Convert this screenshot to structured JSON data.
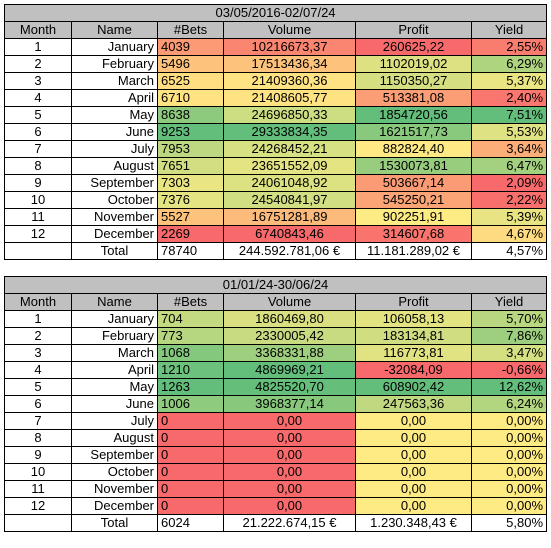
{
  "tables": [
    {
      "title": "03/05/2016-02/07/24",
      "header": [
        "Month",
        "Name",
        "#Bets",
        "Volume",
        "Profit",
        "Yield"
      ],
      "rows": [
        [
          "1",
          "January",
          "4039",
          "10216673,37",
          "260625,22",
          "2,55%"
        ],
        [
          "2",
          "February",
          "5496",
          "17513436,34",
          "1102019,02",
          "6,29%"
        ],
        [
          "3",
          "March",
          "6525",
          "21409360,36",
          "1150350,27",
          "5,37%"
        ],
        [
          "4",
          "April",
          "6710",
          "21408605,77",
          "513381,08",
          "2,40%"
        ],
        [
          "5",
          "May",
          "8638",
          "24696850,33",
          "1854720,56",
          "7,51%"
        ],
        [
          "6",
          "June",
          "9253",
          "29333834,35",
          "1621517,73",
          "5,53%"
        ],
        [
          "7",
          "July",
          "7953",
          "24268452,21",
          "882824,40",
          "3,64%"
        ],
        [
          "8",
          "August",
          "7651",
          "23651552,09",
          "1530073,81",
          "6,47%"
        ],
        [
          "9",
          "September",
          "7303",
          "24061048,92",
          "503667,14",
          "2,09%"
        ],
        [
          "10",
          "October",
          "7376",
          "24540841,97",
          "545250,21",
          "2,22%"
        ],
        [
          "11",
          "November",
          "5527",
          "16751281,89",
          "902251,91",
          "5,39%"
        ],
        [
          "12",
          "December",
          "2269",
          "6740843,46",
          "314607,68",
          "4,67%"
        ]
      ],
      "total": [
        "Total",
        "78740",
        "244.592.781,06 €",
        "11.181.289,02 €",
        "4,57%"
      ]
    },
    {
      "title": "01/01/24-30/06/24",
      "header": [
        "Month",
        "Name",
        "#Bets",
        "Volume",
        "Profit",
        "Yield"
      ],
      "rows": [
        [
          "1",
          "January",
          "704",
          "1860469,80",
          "106058,13",
          "5,70%"
        ],
        [
          "2",
          "February",
          "773",
          "2330005,42",
          "183134,81",
          "7,86%"
        ],
        [
          "3",
          "March",
          "1068",
          "3368331,88",
          "116773,81",
          "3,47%"
        ],
        [
          "4",
          "April",
          "1210",
          "4869969,21",
          "-32084,09",
          "-0,66%"
        ],
        [
          "5",
          "May",
          "1263",
          "4825520,70",
          "608902,42",
          "12,62%"
        ],
        [
          "6",
          "June",
          "1006",
          "3968377,14",
          "247563,36",
          "6,24%"
        ],
        [
          "7",
          "July",
          "0",
          "0,00",
          "0,00",
          "0,00%"
        ],
        [
          "8",
          "August",
          "0",
          "0,00",
          "0,00",
          "0,00%"
        ],
        [
          "9",
          "September",
          "0",
          "0,00",
          "0,00",
          "0,00%"
        ],
        [
          "10",
          "October",
          "0",
          "0,00",
          "0,00",
          "0,00%"
        ],
        [
          "11",
          "November",
          "0",
          "0,00",
          "0,00",
          "0,00%"
        ],
        [
          "12",
          "December",
          "0",
          "0,00",
          "0,00",
          "0,00%"
        ]
      ],
      "total": [
        "Total",
        "6024",
        "21.222.674,15 €",
        "1.230.348,43 €",
        "5,80%"
      ]
    }
  ]
}
